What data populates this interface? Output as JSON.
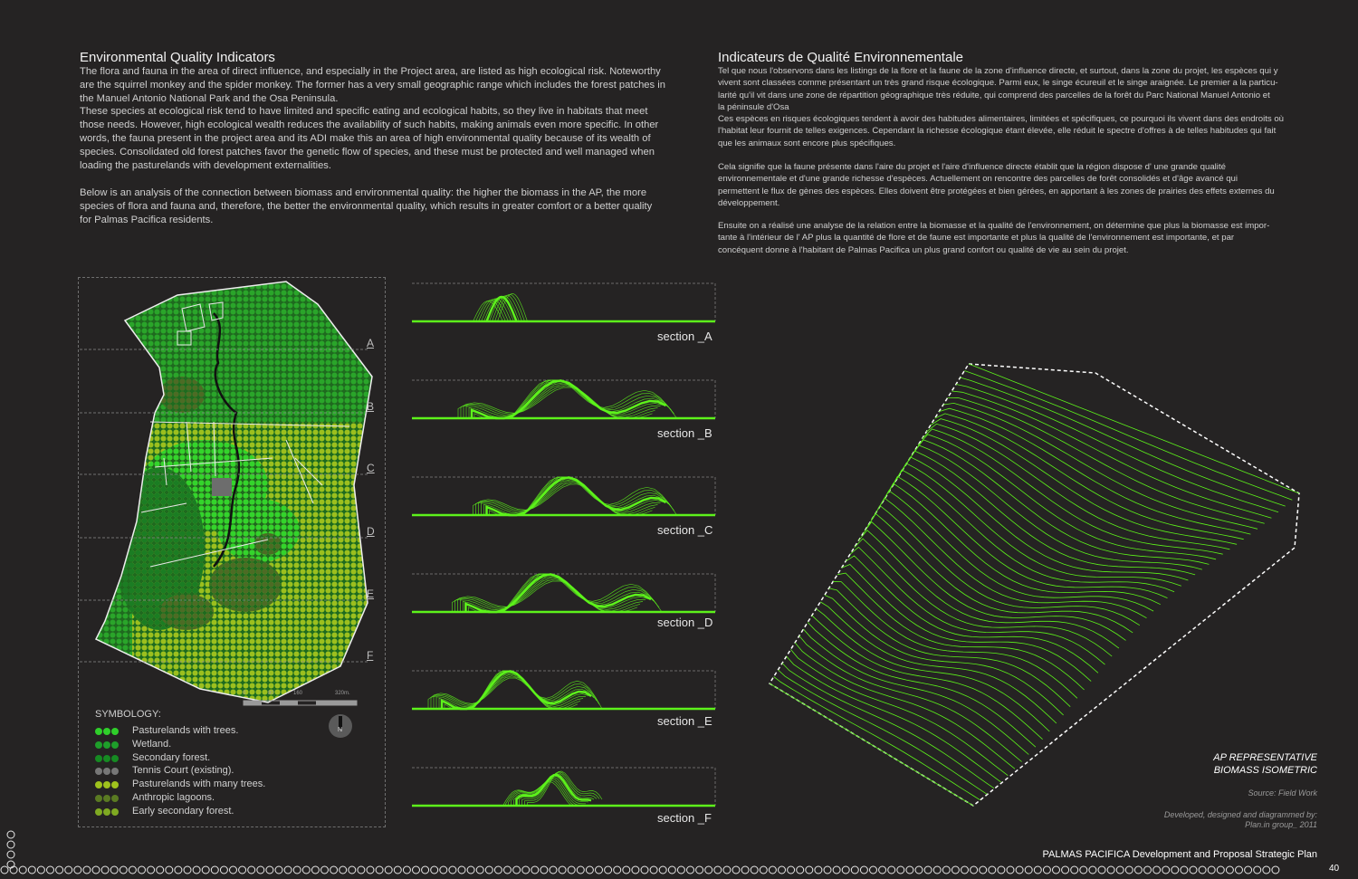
{
  "english": {
    "title": "Environmental Quality Indicators",
    "para1": "The flora and fauna in the area of direct influence, and especially in the Project area, are listed as high ecological risk. Noteworthy\nare the squirrel monkey and the spider monkey. The former has a very small geographic range which includes the forest patches in\nthe Manuel Antonio National Park and the Osa Peninsula.\nThese species at ecological risk tend to have limited and specific eating and ecological habits, so they live in habitats that meet\nthose needs. However, high ecological wealth reduces the availability of such habits, making animals even more specific.  In other\nwords, the fauna present in the project area and its ADI make this an area of high environmental quality because of its wealth of\nspecies.  Consolidated old forest patches favor the genetic flow of species, and these must be protected and well managed when\nloading the pasturelands with development externalities.",
    "para2": "Below is an analysis of the connection between biomass and environmental quality: the higher the biomass in the AP, the more\nspecies of flora and fauna and, therefore, the better the environmental quality, which results in greater comfort or a better quality\nfor Palmas Pacifica residents."
  },
  "french": {
    "title": "Indicateurs de Qualité Environnementale",
    "para1": "Tel que nous l'observons dans les listings de la flore et la faune de la zone d'influence directe, et surtout, dans la zone du projet, les espèces qui y\nvivent sont classées comme présentant un très grand risque écologique. Parmi eux, le singe écureuil et le singe araignée. Le premier a la particu-\nlarité qu'il vit dans une zone de répartition géographique très réduite, qui comprend des parcelles de la forêt du Parc National Manuel Antonio et\nla péninsule d'Osa\nCes espèces en  risques écologiques tendent à avoir des habitudes alimentaires, limitées et spécifiques, ce pourquoi ils vivent dans des endroits où\nl'habitat leur fournit de telles exigences. Cependant la richesse écologique étant élevée, elle réduit le spectre d'offres à de telles habitudes qui fait\nque les animaux sont encore plus spécifiques.",
    "para2": "Cela signifie que la faune présente dans l'aire du projet et l'aire d'influence directe établit  que la région dispose d' une grande qualité\nenvironnementale  et d'une grande richesse d'espèces. Actuellement on rencontre des parcelles de forêt consolidés et d'âge avancé qui\npermettent le flux de gènes des espèces. Elles doivent être protégées et bien gérées, en apportant à les zones de prairies des effets externes du\ndéveloppement.",
    "para3": "Ensuite on a réalisé une analyse de la relation entre la biomasse et la qualité de l'environnement, on détermine que plus la biomasse est impor-\ntante à l'intérieur de l' AP plus la quantité de flore et de faune est importante et plus la qualité de l'environnement est importante, et par\nconcéquent donne à l'habitant de Palmas Pacifica un plus grand confort ou qualité de vie au sein du projet."
  },
  "map": {
    "row_labels": [
      "A",
      "B",
      "C",
      "D",
      "E",
      "F"
    ],
    "scale_ticks": [
      "0",
      "80",
      "160",
      "320m."
    ],
    "north": "N",
    "symbology_title": "SYMBOLOGY:",
    "legend": [
      {
        "label": "Pasturelands with trees.",
        "color": "#2fcf2a",
        "icon": "dot-swatch-bright-green"
      },
      {
        "label": "Wetland.",
        "color": "#1e9e2a",
        "icon": "dot-swatch-green"
      },
      {
        "label": "Secondary forest.",
        "color": "#168a22",
        "icon": "dot-swatch-dark-green"
      },
      {
        "label": "Tennis Court (existing).",
        "color": "#777777",
        "icon": "dot-swatch-gray"
      },
      {
        "label": "Pasturelands with many trees.",
        "color": "#9fc21d",
        "icon": "dot-swatch-yellow-green"
      },
      {
        "label": "Anthropic lagoons.",
        "color": "#5a7a22",
        "icon": "dot-swatch-olive"
      },
      {
        "label": "Early secondary forest.",
        "color": "#7faa22",
        "icon": "dot-swatch-olive-green"
      }
    ]
  },
  "sections": [
    "section _A",
    "section _B",
    "section _C",
    "section _D",
    "section _E",
    "section _F"
  ],
  "isometric": {
    "title_line1": "AP REPRESENTATIVE",
    "title_line2": "BIOMASS ISOMETRIC",
    "source": "Source: Field Work",
    "credit_line1": "Developed, designed and diagrammed by:",
    "credit_line2": "Plan.in group_ 2011"
  },
  "colors": {
    "accent": "#5df21b",
    "background": "#252323"
  },
  "footer": {
    "title": "PALMAS PACIFICA Development and Proposal Strategic Plan",
    "page": "40"
  }
}
